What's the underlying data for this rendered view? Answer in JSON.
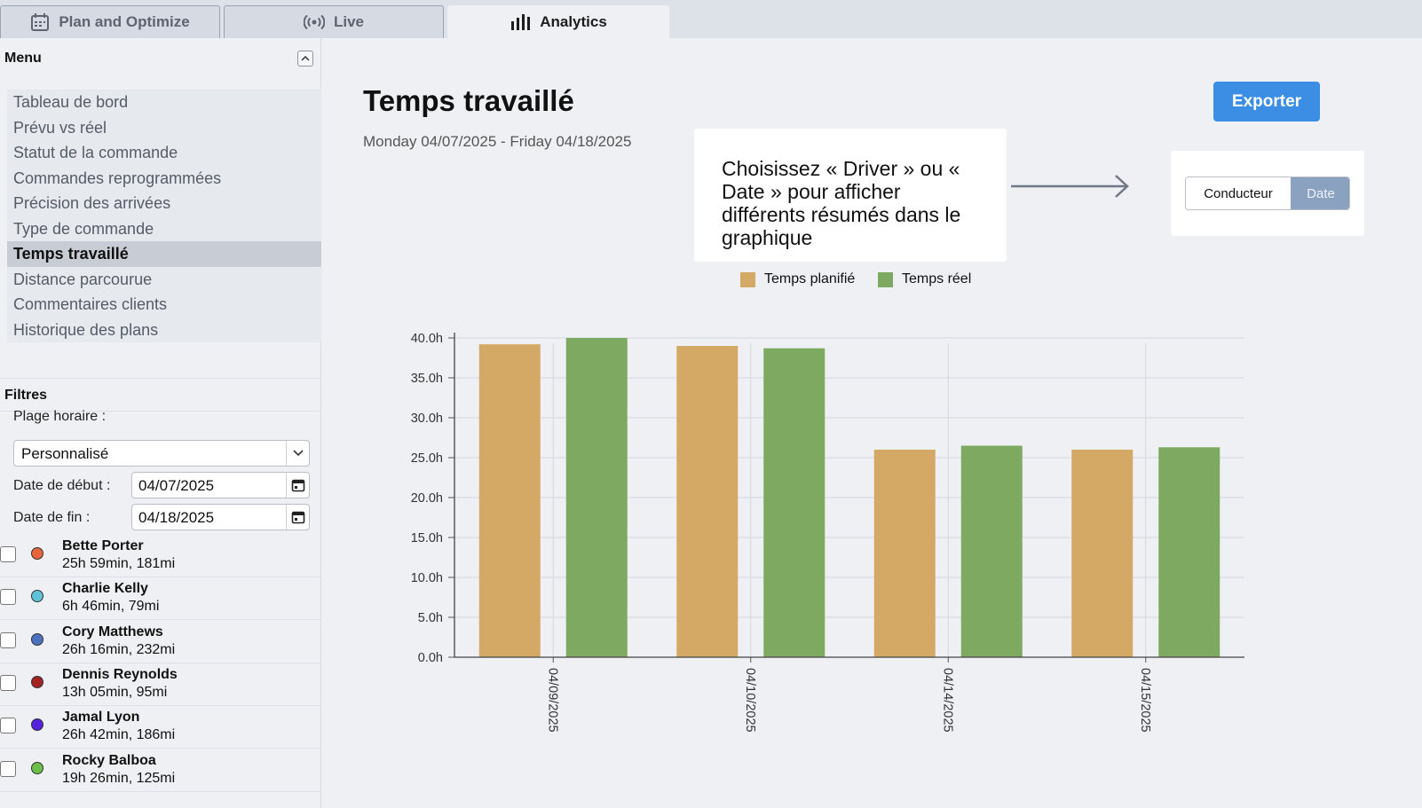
{
  "tabs": [
    {
      "label": "Plan and Optimize",
      "icon": "calendar-icon",
      "active": false
    },
    {
      "label": "Live",
      "icon": "broadcast-icon",
      "active": false
    },
    {
      "label": "Analytics",
      "icon": "bar-chart-icon",
      "active": true
    }
  ],
  "sidebar": {
    "menu_title": "Menu",
    "menu_items": [
      {
        "label": "Tableau de bord",
        "active": false
      },
      {
        "label": "Prévu vs réel",
        "active": false
      },
      {
        "label": "Statut de la commande",
        "active": false
      },
      {
        "label": "Commandes reprogrammées",
        "active": false
      },
      {
        "label": "Précision des arrivées",
        "active": false
      },
      {
        "label": "Type de commande",
        "active": false
      },
      {
        "label": "Temps travaillé",
        "active": true
      },
      {
        "label": "Distance parcourue",
        "active": false
      },
      {
        "label": "Commentaires clients",
        "active": false
      },
      {
        "label": "Historique des plans",
        "active": false
      }
    ],
    "filters": {
      "title": "Filtres",
      "range_label": "Plage horaire :",
      "range_value": "Personnalisé",
      "start_label": "Date de début :",
      "start_value": "04/07/2025",
      "end_label": "Date de fin :",
      "end_value": "04/18/2025"
    },
    "drivers": [
      {
        "name": "Bette Porter",
        "stats": "25h 59min, 181mi",
        "color": "#e8643c",
        "checked": false
      },
      {
        "name": "Charlie Kelly",
        "stats": "6h 46min, 79mi",
        "color": "#5fc3d8",
        "checked": false
      },
      {
        "name": "Cory Matthews",
        "stats": "26h 16min, 232mi",
        "color": "#4b72c0",
        "checked": false
      },
      {
        "name": "Dennis Reynolds",
        "stats": "13h 05min, 95mi",
        "color": "#a32222",
        "checked": false
      },
      {
        "name": "Jamal Lyon",
        "stats": "26h 42min, 186mi",
        "color": "#5522dd",
        "checked": false
      },
      {
        "name": "Rocky Balboa",
        "stats": "19h 26min, 125mi",
        "color": "#6cc04a",
        "checked": false
      }
    ]
  },
  "main": {
    "title": "Temps travaillé",
    "date_range": "Monday 04/07/2025 - Friday 04/18/2025",
    "export_label": "Exporter",
    "callout_text": "Choisissez « Driver » ou « Date » pour afficher différents résumés dans le graphique",
    "toggle": {
      "option_a": "Conducteur",
      "option_b": "Date",
      "selected": "Date"
    }
  },
  "chart_data": {
    "type": "bar",
    "categories": [
      "04/09/2025",
      "04/10/2025",
      "04/14/2025",
      "04/15/2025"
    ],
    "series": [
      {
        "name": "Temps planifié",
        "color": "#d4a965",
        "values": [
          39.2,
          39.0,
          26.0,
          26.0
        ]
      },
      {
        "name": "Temps réel",
        "color": "#7daa60",
        "values": [
          40.0,
          38.7,
          26.5,
          26.3
        ]
      }
    ],
    "yticks": [
      "0.0h",
      "5.0h",
      "10.0h",
      "15.0h",
      "20.0h",
      "25.0h",
      "30.0h",
      "35.0h",
      "40.0h"
    ],
    "ylim": [
      0,
      40
    ],
    "grid": true,
    "legend_position": "top-center",
    "xlabel": "",
    "ylabel": "",
    "title": ""
  }
}
